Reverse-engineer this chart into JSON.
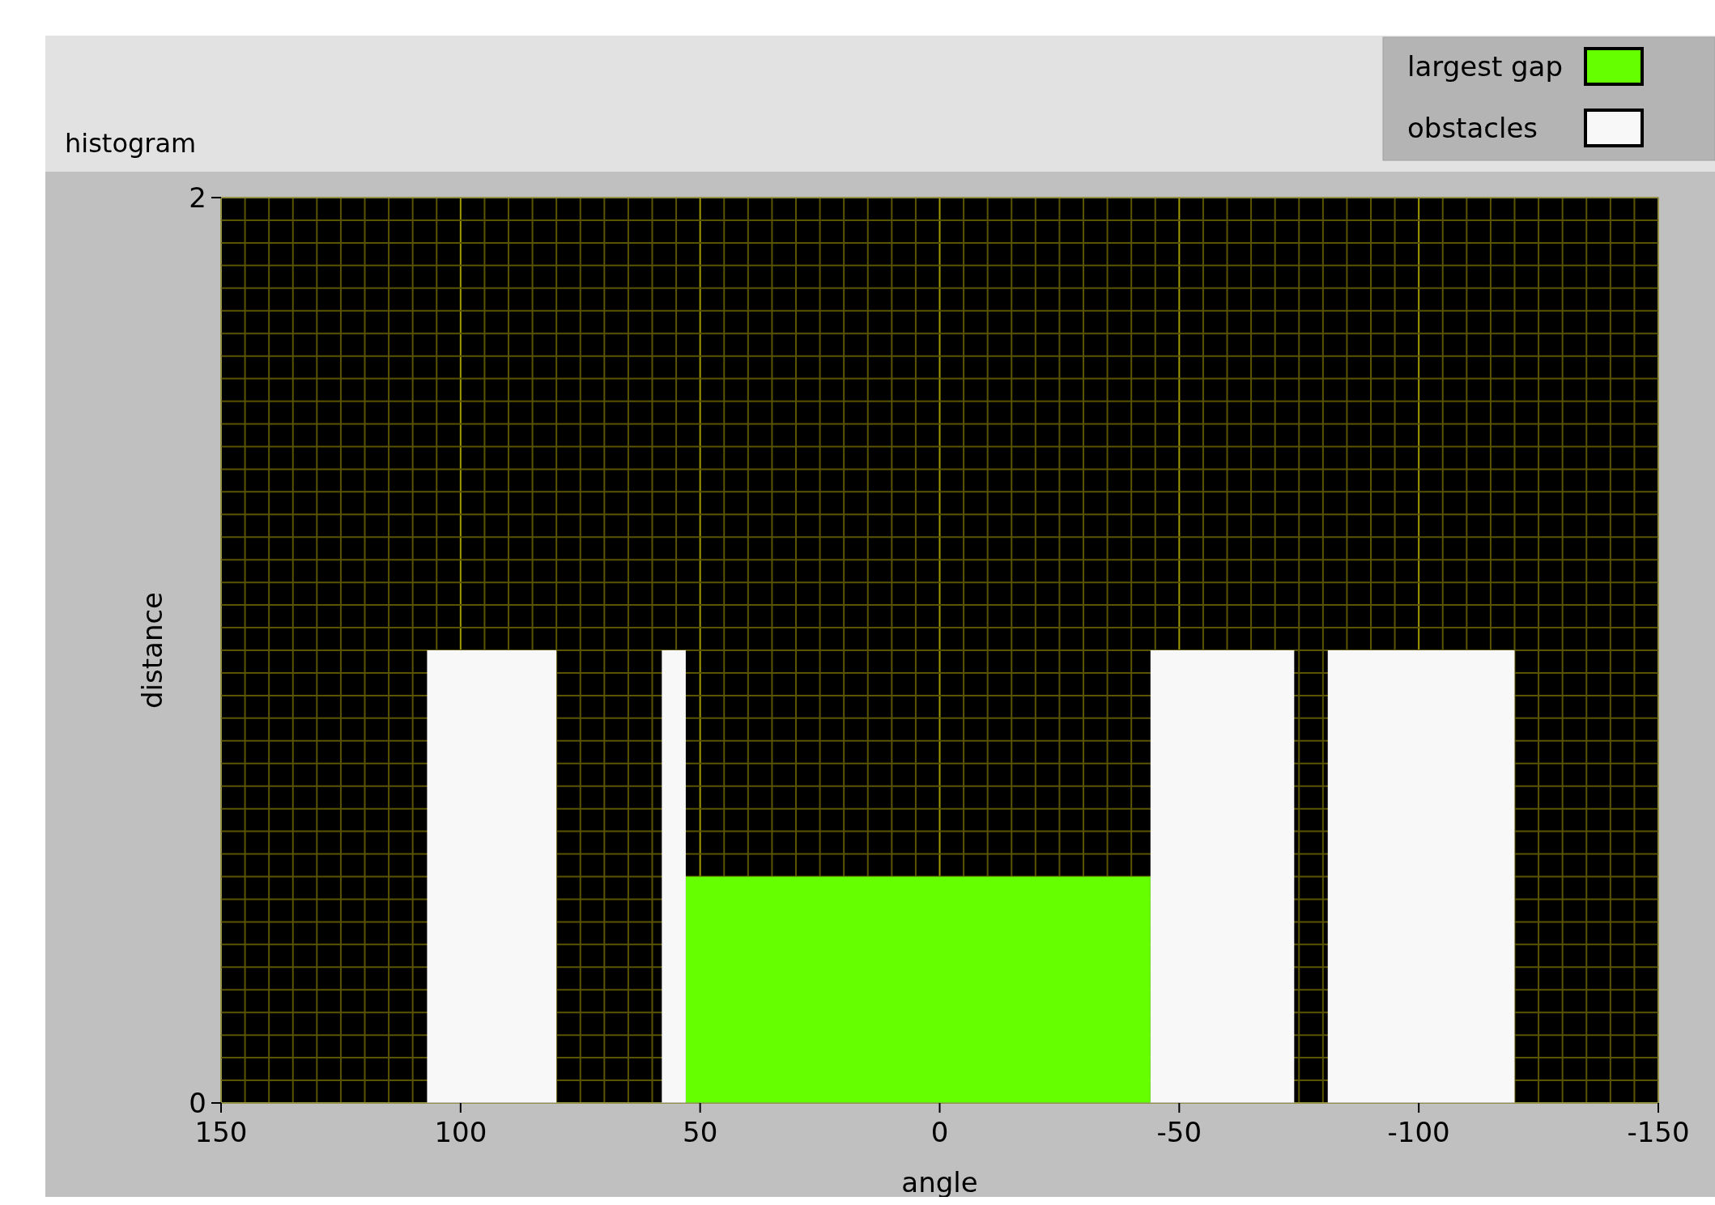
{
  "chart_data": {
    "type": "histogram",
    "title": "histogram",
    "xlabel": "angle",
    "ylabel": "distance",
    "bins": [
      107,
      80,
      58,
      53,
      -44,
      -74,
      -81,
      -120
    ],
    "series": [
      {
        "name": "largest gap",
        "color": "#66ff00",
        "values": [
          0,
          0,
          0,
          0.5,
          0,
          0,
          0
        ]
      },
      {
        "name": "obstacles",
        "color": "#f8f8f8",
        "values": [
          1,
          0,
          1,
          0,
          1,
          0,
          1
        ]
      }
    ],
    "xlim": [
      150,
      -150
    ],
    "xticks": [
      150,
      {
        "value": 145,
        "label": null
      },
      {
        "value": 140,
        "label": null
      },
      {
        "value": 135,
        "label": null
      },
      {
        "value": 130,
        "label": null
      },
      {
        "value": 125,
        "label": null
      },
      {
        "value": 120,
        "label": null
      },
      {
        "value": 115,
        "label": null
      },
      {
        "value": 110,
        "label": null
      },
      {
        "value": 105,
        "label": null
      },
      100,
      {
        "value": 95,
        "label": null
      },
      {
        "value": 90,
        "label": null
      },
      {
        "value": 85,
        "label": null
      },
      {
        "value": 80,
        "label": null
      },
      {
        "value": 75,
        "label": null
      },
      {
        "value": 70,
        "label": null
      },
      {
        "value": 65,
        "label": null
      },
      {
        "value": 60,
        "label": null
      },
      {
        "value": 55,
        "label": null
      },
      50,
      {
        "value": 45,
        "label": null
      },
      {
        "value": 40,
        "label": null
      },
      {
        "value": 35,
        "label": null
      },
      {
        "value": 30,
        "label": null
      },
      {
        "value": 25,
        "label": null
      },
      {
        "value": 20,
        "label": null
      },
      {
        "value": 15,
        "label": null
      },
      {
        "value": 10,
        "label": null
      },
      {
        "value": 5,
        "label": null
      },
      0,
      {
        "value": -5,
        "label": null
      },
      {
        "value": -10,
        "label": null
      },
      {
        "value": -15,
        "label": null
      },
      {
        "value": -20,
        "label": null
      },
      {
        "value": -25,
        "label": null
      },
      {
        "value": -30,
        "label": null
      },
      {
        "value": -35,
        "label": null
      },
      {
        "value": -40,
        "label": null
      },
      {
        "value": -45,
        "label": null
      },
      -50,
      {
        "value": -55,
        "label": null
      },
      {
        "value": -60,
        "label": null
      },
      {
        "value": -65,
        "label": null
      },
      {
        "value": -70,
        "label": null
      },
      {
        "value": -75,
        "label": null
      },
      {
        "value": -80,
        "label": null
      },
      {
        "value": -85,
        "label": null
      },
      {
        "value": -90,
        "label": null
      },
      {
        "value": -95,
        "label": null
      },
      -100,
      {
        "value": -105,
        "label": null
      },
      {
        "value": -110,
        "label": null
      },
      {
        "value": -115,
        "label": null
      },
      {
        "value": -120,
        "label": null
      },
      {
        "value": -125,
        "label": null
      },
      {
        "value": -130,
        "label": null
      },
      {
        "value": -135,
        "label": null
      },
      {
        "value": -140,
        "label": null
      },
      {
        "value": -145,
        "label": null
      },
      -150
    ],
    "ylim": [
      0,
      2
    ],
    "yticks": [
      0,
      {
        "value": 0.05,
        "label": null
      },
      {
        "value": 0.1,
        "label": null
      },
      {
        "value": 0.15,
        "label": null
      },
      {
        "value": 0.2,
        "label": null
      },
      {
        "value": 0.25,
        "label": null
      },
      {
        "value": 0.3,
        "label": null
      },
      {
        "value": 0.35,
        "label": null
      },
      {
        "value": 0.4,
        "label": null
      },
      {
        "value": 0.45,
        "label": null
      },
      {
        "value": 0.5,
        "label": null
      },
      {
        "value": 0.55,
        "label": null
      },
      {
        "value": 0.6,
        "label": null
      },
      {
        "value": 0.65,
        "label": null
      },
      {
        "value": 0.7,
        "label": null
      },
      {
        "value": 0.75,
        "label": null
      },
      {
        "value": 0.8,
        "label": null
      },
      {
        "value": 0.85,
        "label": null
      },
      {
        "value": 0.9,
        "label": null
      },
      {
        "value": 0.95,
        "label": null
      },
      {
        "value": 1,
        "label": null
      },
      {
        "value": 1.05,
        "label": null
      },
      {
        "value": 1.1,
        "label": null
      },
      {
        "value": 1.15,
        "label": null
      },
      {
        "value": 1.2,
        "label": null
      },
      {
        "value": 1.25,
        "label": null
      },
      {
        "value": 1.3,
        "label": null
      },
      {
        "value": 1.35,
        "label": null
      },
      {
        "value": 1.4,
        "label": null
      },
      {
        "value": 1.45,
        "label": null
      },
      {
        "value": 1.5,
        "label": null
      },
      {
        "value": 1.55,
        "label": null
      },
      {
        "value": 1.6,
        "label": null
      },
      {
        "value": 1.65,
        "label": null
      },
      {
        "value": 1.7,
        "label": null
      },
      {
        "value": 1.75,
        "label": null
      },
      {
        "value": 1.8,
        "label": null
      },
      {
        "value": 1.85,
        "label": null
      },
      {
        "value": 1.9,
        "label": null
      },
      {
        "value": 1.95,
        "label": null
      },
      2
    ],
    "grid": true,
    "legend": "top right"
  }
}
